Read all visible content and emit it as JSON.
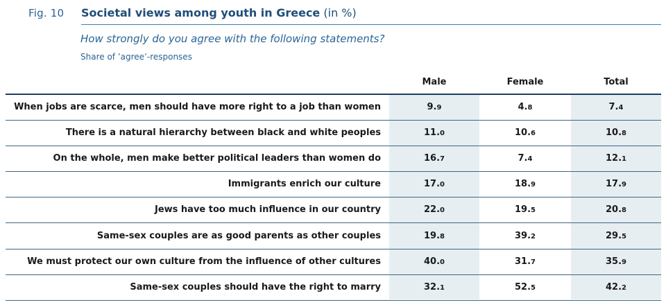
{
  "header": {
    "fig_label": "Fig. 10",
    "title_bold": "Societal views among youth in Greece",
    "title_unit": "(in %)",
    "subtitle": "How strongly do you agree with the following statements?",
    "note": "Share of ’agree’-responses"
  },
  "chart_data": {
    "type": "table",
    "columns": [
      "Male",
      "Female",
      "Total"
    ],
    "rows": [
      {
        "label": "When jobs are scarce, men should have more right to a job than women",
        "values": [
          "9.9",
          "4.8",
          "7.4"
        ]
      },
      {
        "label": "There is a natural hierarchy between black and white peoples",
        "values": [
          "11.0",
          "10.6",
          "10.8"
        ]
      },
      {
        "label": "On the whole, men make better political leaders than women do",
        "values": [
          "16.7",
          "7.4",
          "12.1"
        ]
      },
      {
        "label": "Immigrants enrich our culture",
        "values": [
          "17.0",
          "18.9",
          "17.9"
        ]
      },
      {
        "label": "Jews have too much influence in our country",
        "values": [
          "22.0",
          "19.5",
          "20.8"
        ]
      },
      {
        "label": "Same-sex couples are as good parents as other couples",
        "values": [
          "19.8",
          "39.2",
          "29.5"
        ]
      },
      {
        "label": "We must protect our own culture from the influence of other cultures",
        "values": [
          "40.0",
          "31.7",
          "35.9"
        ]
      },
      {
        "label": "Same-sex couples should have the right to marry",
        "values": [
          "32.1",
          "52.5",
          "42.2"
        ]
      }
    ]
  },
  "colors": {
    "accent": "#1f4e79",
    "shade": "#e6eef2",
    "rule": "#1e3d5c"
  }
}
